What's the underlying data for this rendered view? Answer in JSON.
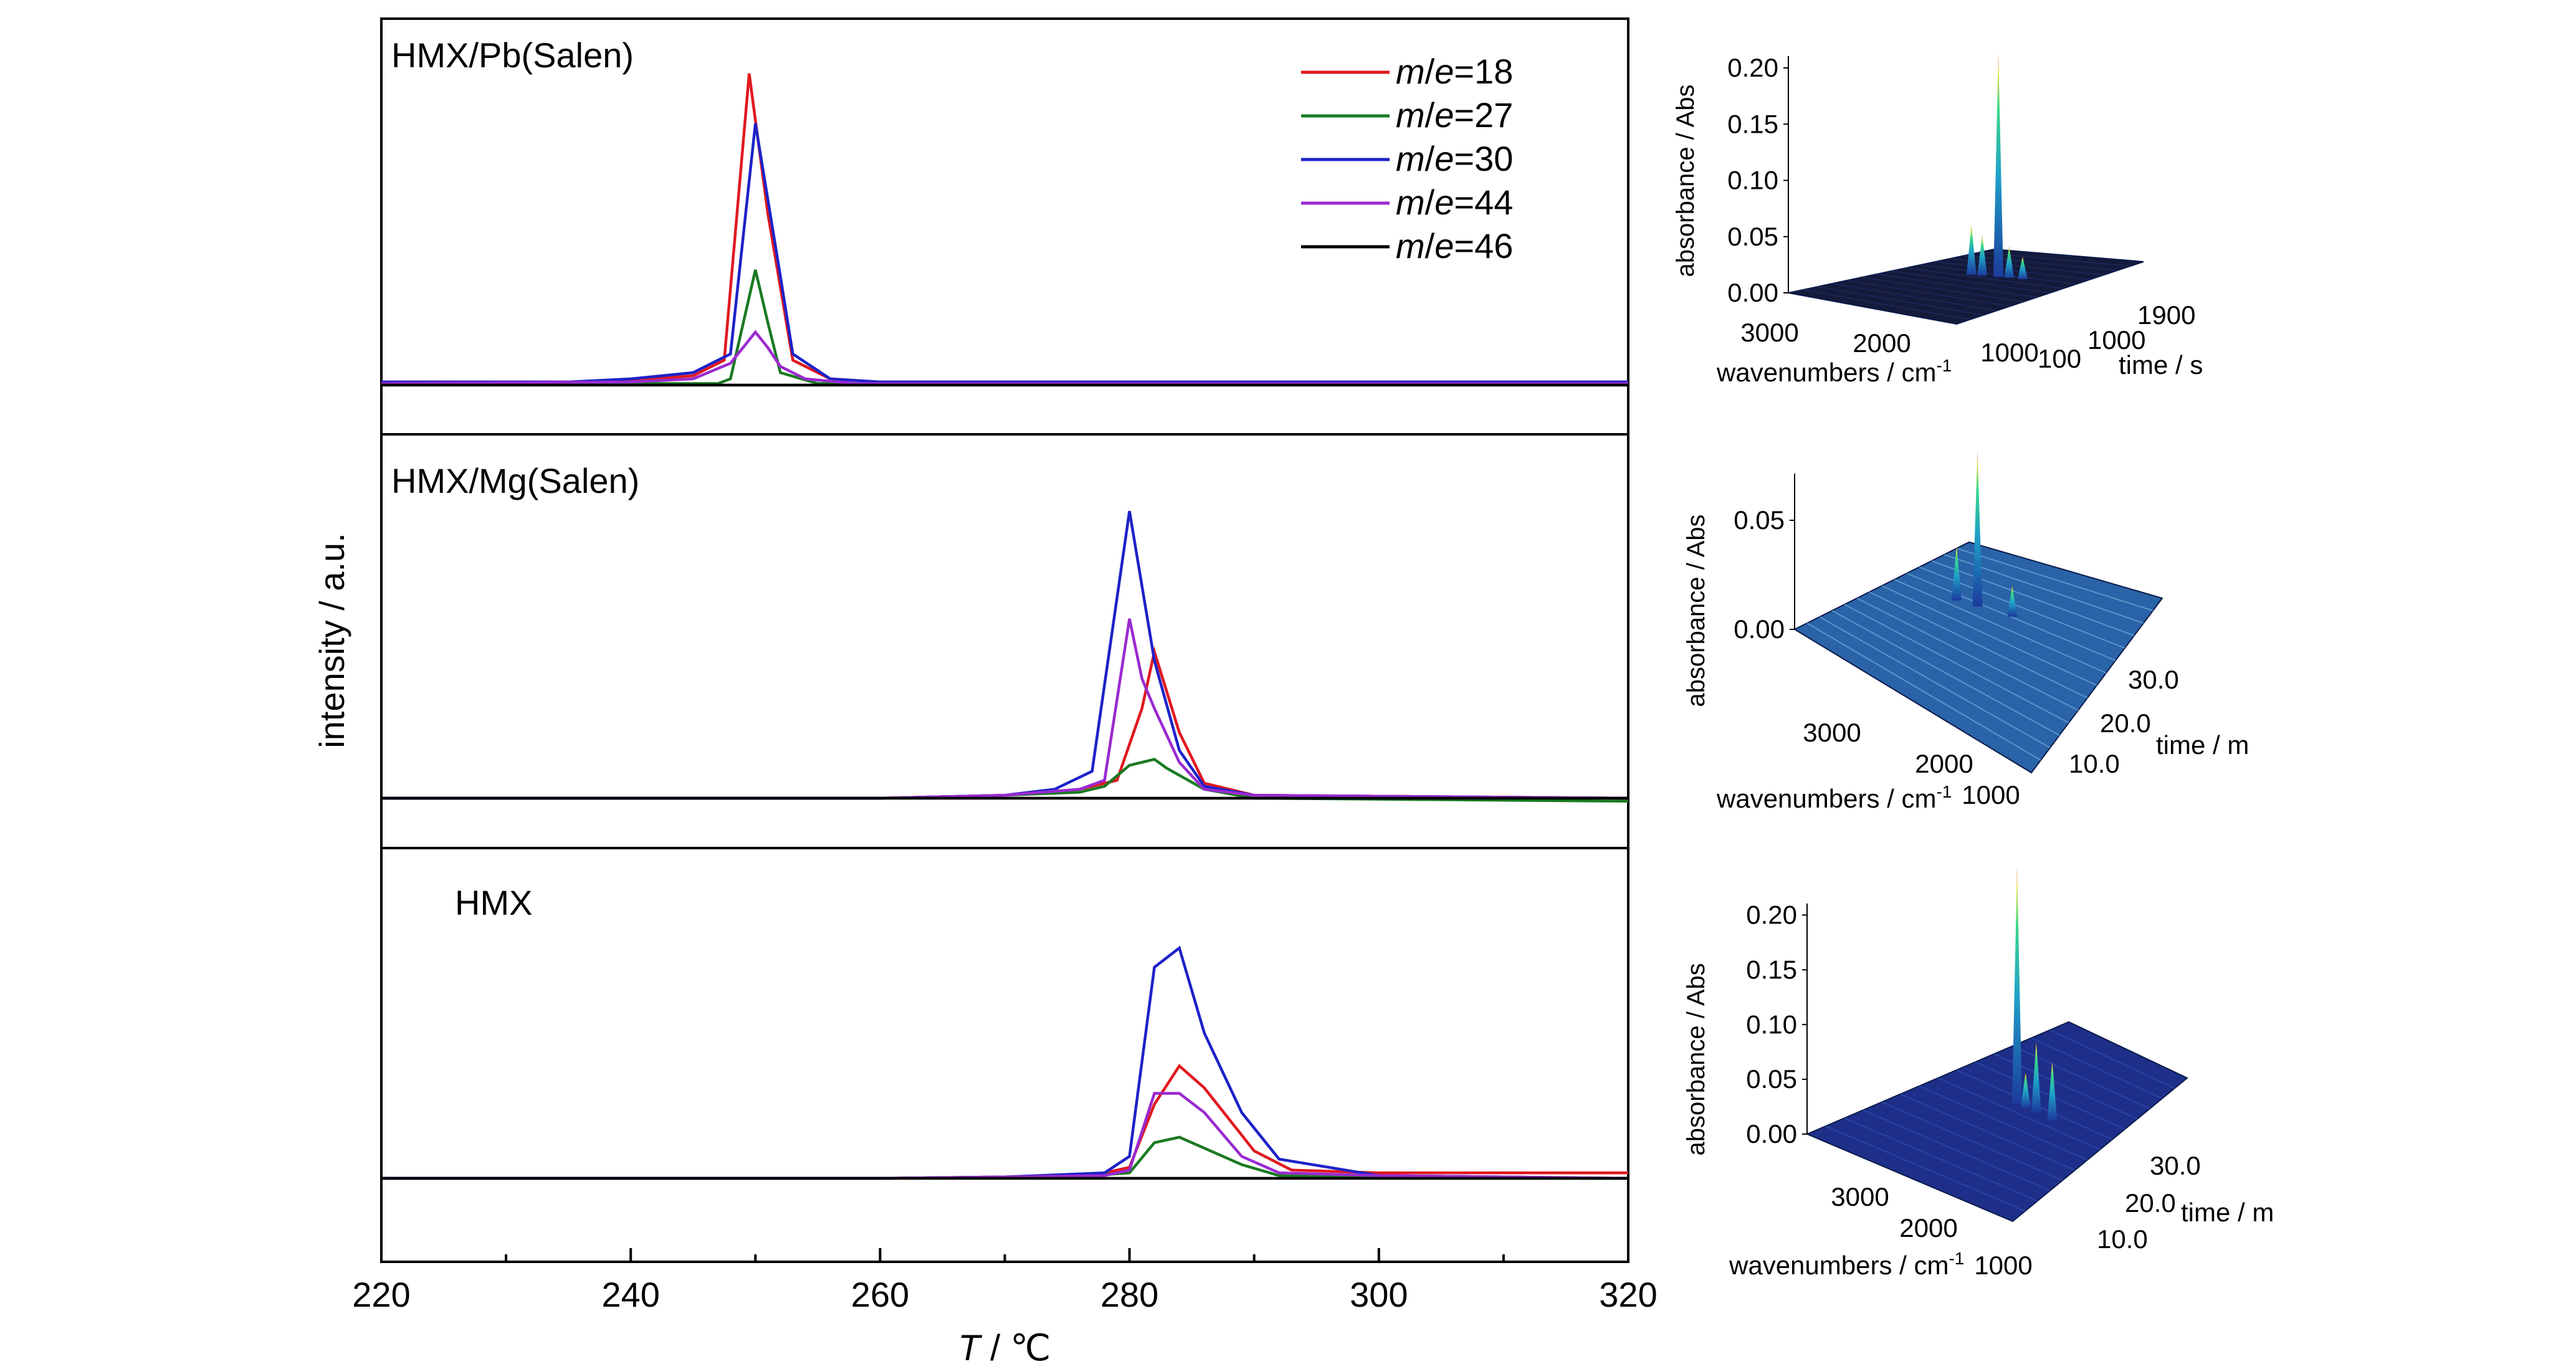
{
  "chart_data": [
    {
      "type": "line",
      "panels_title": "",
      "xlabel_italic": "T",
      "xlabel_rest": " / ℃",
      "ylabel": "intensity / a.u.",
      "xlim": [
        220,
        320
      ],
      "xticks": [
        220,
        240,
        260,
        280,
        300,
        320
      ],
      "legend": {
        "position": "top-right of top panel",
        "entries": [
          {
            "prefix_italic": "m",
            "slash": "/",
            "suffix_italic": "e",
            "value": "=18",
            "series": "m/e=18"
          },
          {
            "prefix_italic": "m",
            "slash": "/",
            "suffix_italic": "e",
            "value": "=27",
            "series": "m/e=27"
          },
          {
            "prefix_italic": "m",
            "slash": "/",
            "suffix_italic": "e",
            "value": "=30",
            "series": "m/e=30"
          },
          {
            "prefix_italic": "m",
            "slash": "/",
            "suffix_italic": "e",
            "value": "=44",
            "series": "m/e=44"
          },
          {
            "prefix_italic": "m",
            "slash": "/",
            "suffix_italic": "e",
            "value": "=46",
            "series": "m/e=46"
          }
        ]
      },
      "colors": {
        "m/e=18": "#e0191f",
        "m/e=27": "#1a7a22",
        "m/e=30": "#1d22c8",
        "m/e=44": "#9a2ad0",
        "m/e=46": "#000000"
      },
      "panels": [
        {
          "label": "HMX/Pb(Salen)",
          "ylim": [
            0,
            100
          ],
          "series": [
            {
              "name": "m/e=18",
              "x": [
                220,
                235,
                240,
                245,
                247.5,
                249.5,
                251,
                253,
                256,
                260,
                320
              ],
              "y": [
                1,
                1,
                1.5,
                3,
                8,
                100,
                55,
                8,
                2,
                1,
                1
              ]
            },
            {
              "name": "m/e=27",
              "x": [
                220,
                240,
                247,
                248,
                250,
                251,
                252,
                255,
                260,
                320
              ],
              "y": [
                0.5,
                0.5,
                0.5,
                2,
                37,
                20,
                4,
                0.5,
                0.5,
                0.5
              ]
            },
            {
              "name": "m/e=30",
              "x": [
                220,
                235,
                240,
                245,
                248,
                250,
                252,
                253,
                256,
                260,
                320
              ],
              "y": [
                1,
                1,
                2,
                4,
                10,
                84,
                35,
                10,
                2,
                1,
                1
              ]
            },
            {
              "name": "m/e=44",
              "x": [
                220,
                240,
                245,
                248,
                250,
                251,
                252,
                254,
                258,
                320
              ],
              "y": [
                0.5,
                1,
                2,
                7,
                17,
                12,
                6,
                2,
                0.5,
                0.5
              ]
            },
            {
              "name": "m/e=46",
              "x": [
                220,
                320
              ],
              "y": [
                0,
                0
              ]
            }
          ]
        },
        {
          "label": "HMX/Mg(Salen)",
          "ylim": [
            0,
            100
          ],
          "series": [
            {
              "name": "m/e=18",
              "x": [
                220,
                260,
                270,
                276,
                279,
                281,
                282,
                284,
                286,
                290,
                320
              ],
              "y": [
                0,
                0,
                1,
                3,
                6,
                30,
                49,
                22,
                5,
                1,
                0
              ]
            },
            {
              "name": "m/e=27",
              "x": [
                220,
                260,
                270,
                276,
                278,
                280,
                282,
                283,
                286,
                290,
                320
              ],
              "y": [
                0,
                0,
                1,
                2,
                4,
                11,
                13,
                10,
                3,
                0,
                -1
              ]
            },
            {
              "name": "m/e=30",
              "x": [
                220,
                260,
                270,
                274,
                277,
                280,
                282,
                284,
                286,
                290,
                320
              ],
              "y": [
                0,
                0,
                1,
                3,
                9,
                96,
                46,
                16,
                4,
                1,
                0
              ]
            },
            {
              "name": "m/e=44",
              "x": [
                220,
                260,
                270,
                276,
                278,
                280,
                281,
                282,
                284,
                286,
                290,
                320
              ],
              "y": [
                0,
                0,
                1,
                3,
                6,
                60,
                40,
                30,
                12,
                3,
                1,
                0
              ]
            },
            {
              "name": "m/e=46",
              "x": [
                220,
                320
              ],
              "y": [
                0,
                0
              ]
            }
          ]
        },
        {
          "label": "HMX",
          "ylim": [
            0,
            100
          ],
          "series": [
            {
              "name": "m/e=18",
              "x": [
                220,
                260,
                270,
                277,
                280,
                282,
                284,
                286,
                290,
                293,
                300,
                320
              ],
              "y": [
                0,
                0,
                0.5,
                1,
                4,
                27,
                41,
                33,
                10,
                3,
                2,
                2
              ]
            },
            {
              "name": "m/e=27",
              "x": [
                220,
                260,
                270,
                277,
                280,
                282,
                284,
                286,
                289,
                292,
                300,
                320
              ],
              "y": [
                0,
                0,
                0.5,
                1,
                2,
                13,
                15,
                11,
                5,
                1,
                0,
                0
              ]
            },
            {
              "name": "m/e=30",
              "x": [
                220,
                260,
                270,
                278,
                280,
                282,
                284,
                286,
                289,
                292,
                300,
                320
              ],
              "y": [
                0,
                0,
                0.5,
                2,
                8,
                77,
                84,
                53,
                24,
                7,
                1,
                0
              ]
            },
            {
              "name": "m/e=44",
              "x": [
                220,
                260,
                270,
                278,
                280,
                282,
                284,
                286,
                289,
                292,
                300,
                320
              ],
              "y": [
                0,
                0,
                0.5,
                1,
                3,
                31,
                31,
                24,
                8,
                2,
                1,
                0
              ]
            },
            {
              "name": "m/e=46",
              "x": [
                220,
                320
              ],
              "y": [
                0,
                0
              ]
            }
          ]
        }
      ]
    },
    {
      "type": "surface3d",
      "zlabel": "absorbance / Abs",
      "xlabel": "wavenumbers / cm",
      "xlabel_sup": "-1",
      "ylabel": "time / s",
      "zticks": [
        "0.00",
        "0.05",
        "0.10",
        "0.15",
        "0.20"
      ],
      "xticks": [
        "3000",
        "2000",
        "1000"
      ],
      "yticks": [
        "100",
        "1000",
        "1900"
      ],
      "peaks": [
        {
          "pos": 0.72,
          "h": 1.0
        },
        {
          "pos": 0.52,
          "h": 0.22
        },
        {
          "pos": 0.6,
          "h": 0.18
        },
        {
          "pos": 0.8,
          "h": 0.14
        },
        {
          "pos": 0.9,
          "h": 0.1
        }
      ]
    },
    {
      "type": "surface3d",
      "zlabel": "absorbance / Abs",
      "xlabel": "wavenumbers / cm",
      "xlabel_sup": "-1",
      "ylabel": "time / m",
      "zticks": [
        "0.00",
        "0.05"
      ],
      "xticks": [
        "3000",
        "2000",
        "1000"
      ],
      "yticks": [
        "10.0",
        "20.0",
        "30.0"
      ],
      "peaks": [
        {
          "pos": 0.5,
          "h": 1.0
        },
        {
          "pos": 0.38,
          "h": 0.35
        },
        {
          "pos": 0.7,
          "h": 0.2
        }
      ]
    },
    {
      "type": "surface3d",
      "zlabel": "absorbance / Abs",
      "xlabel": "wavenumbers / cm",
      "xlabel_sup": "-1",
      "ylabel": "time / m",
      "zticks": [
        "0.00",
        "0.05",
        "0.10",
        "0.15",
        "0.20"
      ],
      "xticks": [
        "3000",
        "2000",
        "1000"
      ],
      "yticks": [
        "10.0",
        "20.0",
        "30.0"
      ],
      "peaks": [
        {
          "pos": 0.62,
          "h": 1.0
        },
        {
          "pos": 0.8,
          "h": 0.3
        },
        {
          "pos": 0.95,
          "h": 0.25
        },
        {
          "pos": 0.7,
          "h": 0.15
        }
      ]
    }
  ]
}
